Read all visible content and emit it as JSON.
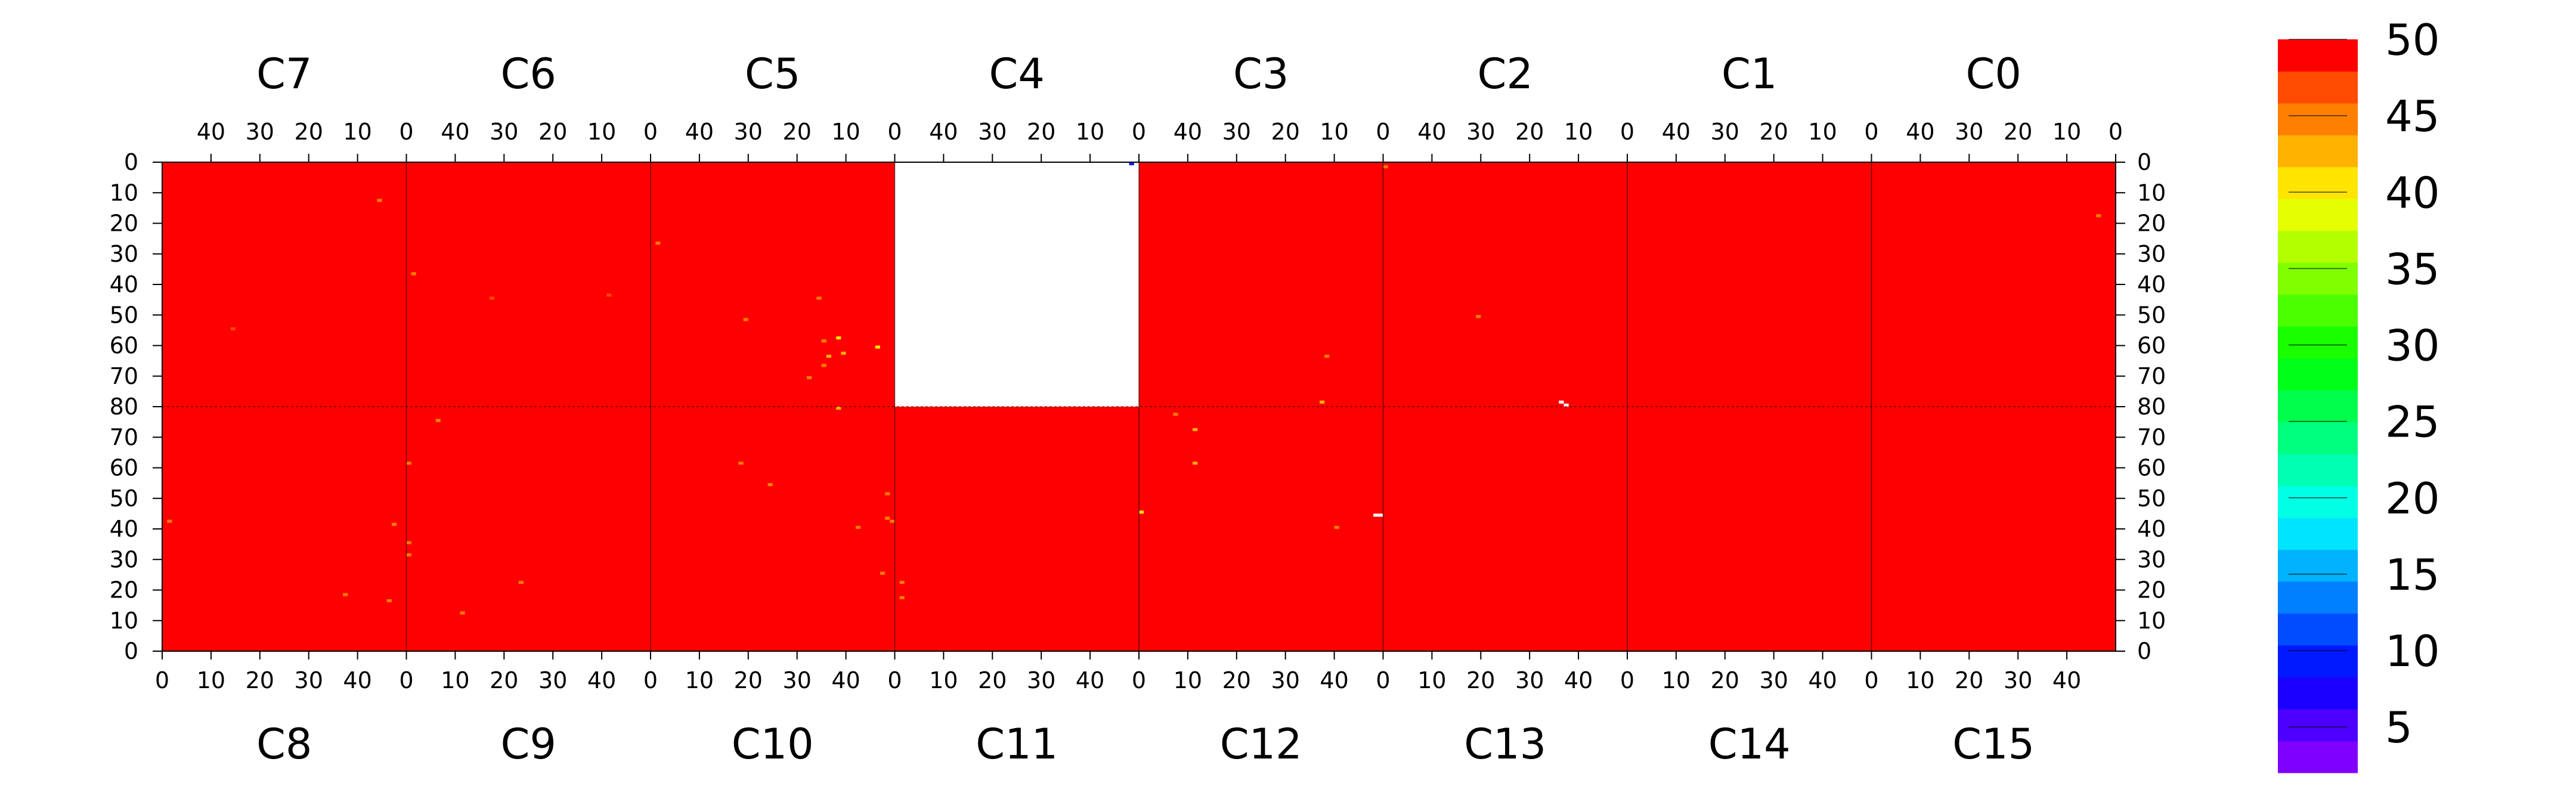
{
  "chart_data": {
    "type": "heatmap",
    "top_chips": [
      "C7",
      "C6",
      "C5",
      "C4",
      "C3",
      "C2",
      "C1",
      "C0"
    ],
    "bottom_chips": [
      "C8",
      "C9",
      "C10",
      "C11",
      "C12",
      "C13",
      "C14",
      "C15"
    ],
    "chip_columns": 50,
    "chip_rows": 80,
    "top_x_tick_labels": [
      "40",
      "30",
      "20",
      "10",
      "0"
    ],
    "top_x_tick_values": [
      40,
      30,
      20,
      10,
      0
    ],
    "bottom_x_tick_labels": [
      "0",
      "10",
      "20",
      "30",
      "40"
    ],
    "bottom_x_tick_values": [
      0,
      10,
      20,
      30,
      40
    ],
    "top_y_tick_labels": [
      "0",
      "10",
      "20",
      "30",
      "40",
      "50",
      "60",
      "70",
      "80"
    ],
    "top_y_tick_values": [
      0,
      10,
      20,
      30,
      40,
      50,
      60,
      70,
      80
    ],
    "bottom_y_tick_labels": [
      "70",
      "60",
      "50",
      "40",
      "30",
      "20",
      "10",
      "0"
    ],
    "bottom_y_tick_values": [
      70,
      60,
      50,
      40,
      30,
      20,
      10,
      0
    ],
    "value_range": [
      2,
      50
    ],
    "background_value": 50,
    "empty_chips": [
      "C4"
    ],
    "colorbar": {
      "tick_labels": [
        "5",
        "10",
        "15",
        "20",
        "25",
        "30",
        "35",
        "40",
        "45",
        "50"
      ],
      "tick_values": [
        5,
        10,
        15,
        20,
        25,
        30,
        35,
        40,
        45,
        50
      ],
      "band_colors": [
        "#7f00ff",
        "#4c00ff",
        "#1c00ff",
        "#0019ff",
        "#004cff",
        "#007fff",
        "#00b2ff",
        "#00e5ff",
        "#00ffe5",
        "#00ffb2",
        "#00ff7f",
        "#00ff4c",
        "#00ff19",
        "#19ff00",
        "#4cff00",
        "#7fff00",
        "#b2ff00",
        "#e5ff00",
        "#ffe500",
        "#ffb200",
        "#ff7f00",
        "#ff4c00",
        "#ff0000"
      ]
    },
    "hot_pixels": [
      {
        "chip": "C7",
        "col": 5,
        "row": 12,
        "value": 44
      },
      {
        "chip": "C7",
        "col": 35,
        "row": 54,
        "value": 46
      },
      {
        "chip": "C6",
        "col": 48,
        "row": 36,
        "value": 45
      },
      {
        "chip": "C6",
        "col": 32,
        "row": 44,
        "value": 46
      },
      {
        "chip": "C6",
        "col": 8,
        "row": 43,
        "value": 46
      },
      {
        "chip": "C5",
        "col": 48,
        "row": 26,
        "value": 45
      },
      {
        "chip": "C5",
        "col": 3,
        "row": 60,
        "value": 40
      },
      {
        "chip": "C5",
        "col": 30,
        "row": 51,
        "value": 45
      },
      {
        "chip": "C5",
        "col": 15,
        "row": 44,
        "value": 45
      },
      {
        "chip": "C5",
        "col": 11,
        "row": 57,
        "value": 40
      },
      {
        "chip": "C5",
        "col": 13,
        "row": 63,
        "value": 42
      },
      {
        "chip": "C5",
        "col": 10,
        "row": 62,
        "value": 42
      },
      {
        "chip": "C5",
        "col": 14,
        "row": 66,
        "value": 44
      },
      {
        "chip": "C5",
        "col": 17,
        "row": 70,
        "value": 45
      },
      {
        "chip": "C5",
        "col": 14,
        "row": 58,
        "value": 44
      },
      {
        "chip": "C4",
        "col": 1,
        "row": 0,
        "value": 10
      },
      {
        "chip": "C3",
        "col": 11,
        "row": 63,
        "value": 44
      },
      {
        "chip": "C3",
        "col": 12,
        "row": 78,
        "value": 42
      },
      {
        "chip": "C2",
        "col": 49,
        "row": 1,
        "value": 45
      },
      {
        "chip": "C2",
        "col": 30,
        "row": 50,
        "value": 45
      },
      {
        "chip": "C2",
        "col": 13,
        "row": 78,
        "value": 0
      },
      {
        "chip": "C2",
        "col": 12,
        "row": 79,
        "value": 0
      },
      {
        "chip": "C0",
        "col": 3,
        "row": 17,
        "value": 45
      },
      {
        "chip": "C8",
        "col": 1,
        "row": 42,
        "value": 45
      },
      {
        "chip": "C8",
        "col": 47,
        "row": 41,
        "value": 44
      },
      {
        "chip": "C8",
        "col": 46,
        "row": 16,
        "value": 45
      },
      {
        "chip": "C8",
        "col": 37,
        "row": 18,
        "value": 45
      },
      {
        "chip": "C9",
        "col": 0,
        "row": 61,
        "value": 45
      },
      {
        "chip": "C9",
        "col": 0,
        "row": 35,
        "value": 44
      },
      {
        "chip": "C9",
        "col": 0,
        "row": 31,
        "value": 44
      },
      {
        "chip": "C9",
        "col": 6,
        "row": 75,
        "value": 45
      },
      {
        "chip": "C9",
        "col": 23,
        "row": 22,
        "value": 45
      },
      {
        "chip": "C9",
        "col": 11,
        "row": 12,
        "value": 45
      },
      {
        "chip": "C10",
        "col": 48,
        "row": 51,
        "value": 45
      },
      {
        "chip": "C10",
        "col": 48,
        "row": 43,
        "value": 44
      },
      {
        "chip": "C10",
        "col": 18,
        "row": 61,
        "value": 45
      },
      {
        "chip": "C10",
        "col": 24,
        "row": 54,
        "value": 45
      },
      {
        "chip": "C10",
        "col": 38,
        "row": 79,
        "value": 42
      },
      {
        "chip": "C10",
        "col": 42,
        "row": 40,
        "value": 45
      },
      {
        "chip": "C10",
        "col": 47,
        "row": 25,
        "value": 45
      },
      {
        "chip": "C10",
        "col": 49,
        "row": 42,
        "value": 45
      },
      {
        "chip": "C11",
        "col": 1,
        "row": 17,
        "value": 45
      },
      {
        "chip": "C11",
        "col": 1,
        "row": 22,
        "value": 45
      },
      {
        "chip": "C12",
        "col": 0,
        "row": 45,
        "value": 40
      },
      {
        "chip": "C12",
        "col": 11,
        "row": 72,
        "value": 42
      },
      {
        "chip": "C12",
        "col": 11,
        "row": 61,
        "value": 42
      },
      {
        "chip": "C12",
        "col": 7,
        "row": 77,
        "value": 45
      },
      {
        "chip": "C12",
        "col": 40,
        "row": 40,
        "value": 45
      },
      {
        "chip": "C12",
        "col": 49,
        "row": 44,
        "value": 0
      },
      {
        "chip": "C12",
        "col": 48,
        "row": 44,
        "value": 0
      }
    ]
  }
}
